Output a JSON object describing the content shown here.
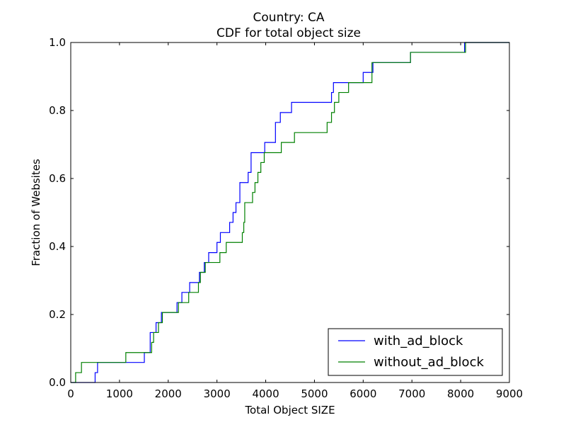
{
  "chart_data": {
    "type": "line",
    "step": true,
    "title": "Country: CA",
    "subtitle": "CDF for total object size",
    "xlabel": "Total Object SIZE",
    "ylabel": "Fraction of Websites",
    "xlim": [
      0,
      9000
    ],
    "ylim": [
      0.0,
      1.0
    ],
    "xticks": [
      0,
      1000,
      2000,
      3000,
      4000,
      5000,
      6000,
      7000,
      8000,
      9000
    ],
    "yticks": [
      0.0,
      0.2,
      0.4,
      0.6,
      0.8,
      1.0
    ],
    "xtick_labels": [
      "0",
      "1000",
      "2000",
      "3000",
      "4000",
      "5000",
      "6000",
      "7000",
      "8000",
      "9000"
    ],
    "ytick_labels": [
      "0.0",
      "0.2",
      "0.4",
      "0.6",
      "0.8",
      "1.0"
    ],
    "grid": false,
    "legend_position": "lower-right",
    "series": [
      {
        "name": "with_ad_block",
        "color": "#0000ff",
        "points": [
          [
            0,
            0.0
          ],
          [
            500,
            0.0
          ],
          [
            500,
            0.029
          ],
          [
            550,
            0.029
          ],
          [
            550,
            0.059
          ],
          [
            1510,
            0.059
          ],
          [
            1510,
            0.088
          ],
          [
            1630,
            0.088
          ],
          [
            1630,
            0.147
          ],
          [
            1750,
            0.147
          ],
          [
            1750,
            0.176
          ],
          [
            1860,
            0.176
          ],
          [
            1860,
            0.206
          ],
          [
            2180,
            0.206
          ],
          [
            2180,
            0.235
          ],
          [
            2280,
            0.235
          ],
          [
            2280,
            0.265
          ],
          [
            2440,
            0.265
          ],
          [
            2440,
            0.294
          ],
          [
            2640,
            0.294
          ],
          [
            2640,
            0.324
          ],
          [
            2740,
            0.324
          ],
          [
            2740,
            0.353
          ],
          [
            2830,
            0.353
          ],
          [
            2830,
            0.382
          ],
          [
            3000,
            0.382
          ],
          [
            3000,
            0.412
          ],
          [
            3070,
            0.412
          ],
          [
            3070,
            0.441
          ],
          [
            3260,
            0.441
          ],
          [
            3260,
            0.471
          ],
          [
            3330,
            0.471
          ],
          [
            3330,
            0.5
          ],
          [
            3390,
            0.5
          ],
          [
            3390,
            0.529
          ],
          [
            3470,
            0.529
          ],
          [
            3470,
            0.588
          ],
          [
            3640,
            0.588
          ],
          [
            3640,
            0.618
          ],
          [
            3700,
            0.618
          ],
          [
            3700,
            0.676
          ],
          [
            3980,
            0.676
          ],
          [
            3980,
            0.706
          ],
          [
            4200,
            0.706
          ],
          [
            4200,
            0.765
          ],
          [
            4300,
            0.765
          ],
          [
            4300,
            0.794
          ],
          [
            4530,
            0.794
          ],
          [
            4530,
            0.824
          ],
          [
            5350,
            0.824
          ],
          [
            5350,
            0.853
          ],
          [
            5390,
            0.853
          ],
          [
            5390,
            0.882
          ],
          [
            6000,
            0.882
          ],
          [
            6000,
            0.912
          ],
          [
            6200,
            0.912
          ],
          [
            6200,
            0.941
          ],
          [
            6970,
            0.941
          ],
          [
            6970,
            0.971
          ],
          [
            8080,
            0.971
          ],
          [
            8080,
            1.0
          ],
          [
            9000,
            1.0
          ]
        ]
      },
      {
        "name": "without_ad_block",
        "color": "#008000",
        "points": [
          [
            0,
            0.0
          ],
          [
            100,
            0.0
          ],
          [
            100,
            0.029
          ],
          [
            220,
            0.029
          ],
          [
            220,
            0.059
          ],
          [
            1130,
            0.059
          ],
          [
            1130,
            0.088
          ],
          [
            1660,
            0.088
          ],
          [
            1660,
            0.118
          ],
          [
            1700,
            0.118
          ],
          [
            1700,
            0.147
          ],
          [
            1800,
            0.147
          ],
          [
            1800,
            0.176
          ],
          [
            1880,
            0.176
          ],
          [
            1880,
            0.206
          ],
          [
            2210,
            0.206
          ],
          [
            2210,
            0.235
          ],
          [
            2420,
            0.235
          ],
          [
            2420,
            0.265
          ],
          [
            2620,
            0.265
          ],
          [
            2620,
            0.294
          ],
          [
            2660,
            0.294
          ],
          [
            2660,
            0.324
          ],
          [
            2760,
            0.324
          ],
          [
            2760,
            0.353
          ],
          [
            3060,
            0.353
          ],
          [
            3060,
            0.382
          ],
          [
            3190,
            0.382
          ],
          [
            3190,
            0.412
          ],
          [
            3520,
            0.412
          ],
          [
            3520,
            0.441
          ],
          [
            3550,
            0.441
          ],
          [
            3550,
            0.471
          ],
          [
            3570,
            0.471
          ],
          [
            3570,
            0.529
          ],
          [
            3730,
            0.529
          ],
          [
            3730,
            0.559
          ],
          [
            3780,
            0.559
          ],
          [
            3780,
            0.588
          ],
          [
            3840,
            0.588
          ],
          [
            3840,
            0.618
          ],
          [
            3900,
            0.618
          ],
          [
            3900,
            0.647
          ],
          [
            3970,
            0.647
          ],
          [
            3970,
            0.676
          ],
          [
            4320,
            0.676
          ],
          [
            4320,
            0.706
          ],
          [
            4590,
            0.706
          ],
          [
            4590,
            0.735
          ],
          [
            5260,
            0.735
          ],
          [
            5260,
            0.765
          ],
          [
            5350,
            0.765
          ],
          [
            5350,
            0.794
          ],
          [
            5410,
            0.794
          ],
          [
            5410,
            0.824
          ],
          [
            5500,
            0.824
          ],
          [
            5500,
            0.853
          ],
          [
            5700,
            0.853
          ],
          [
            5700,
            0.882
          ],
          [
            6180,
            0.882
          ],
          [
            6180,
            0.941
          ],
          [
            6970,
            0.941
          ],
          [
            6970,
            0.971
          ],
          [
            8100,
            0.971
          ],
          [
            8100,
            1.0
          ],
          [
            9000,
            1.0
          ]
        ]
      }
    ]
  }
}
